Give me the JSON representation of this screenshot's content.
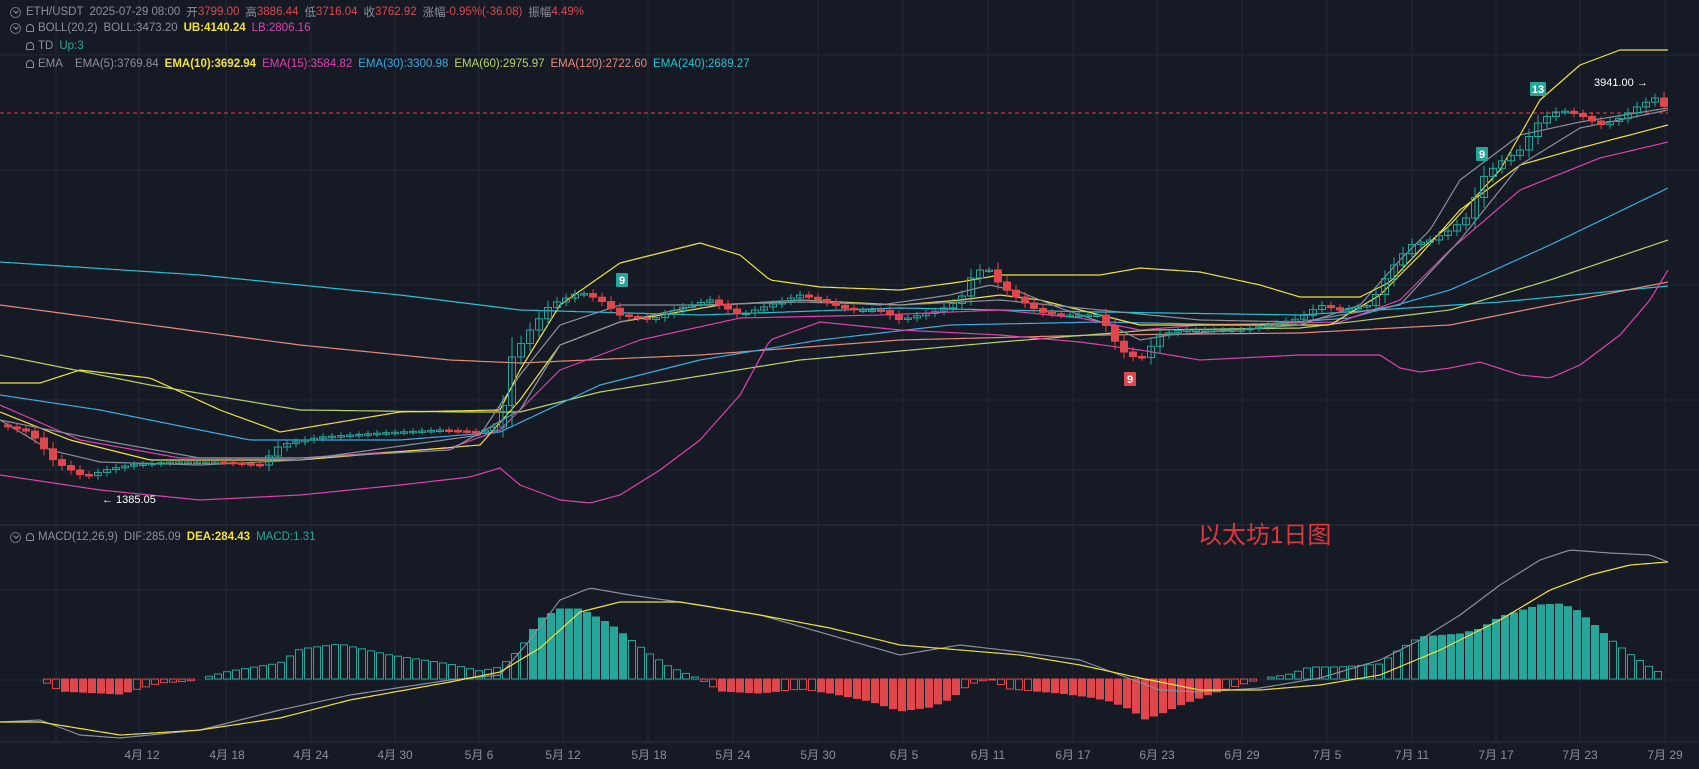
{
  "header": {
    "symbol": "ETH/USDT",
    "datetime": "2025-07-29 08:00",
    "open_label": "开",
    "open": "3799.00",
    "high_label": "高",
    "high": "3886.44",
    "low_label": "低",
    "low": "3716.04",
    "close_label": "收",
    "close": "3762.92",
    "change_label": "涨幅",
    "change": "-0.95%(-36.08)",
    "amp_label": "振幅",
    "amp": "4.49%"
  },
  "boll": {
    "name": "BOLL(20,2)",
    "mid": "BOLL:3473.20",
    "ub": "UB:4140.24",
    "lb": "LB:2806.16",
    "colors": {
      "mid": "#8a8f9c",
      "ub": "#f0e040",
      "lb": "#e040b0"
    }
  },
  "td": {
    "name": "TD",
    "value": "Up:3",
    "color": "#26a69a"
  },
  "ema": {
    "name": "EMA",
    "items": [
      {
        "label": "EMA(5):3769.84",
        "color": "#8a8f9c"
      },
      {
        "label": "EMA(10):3692.94",
        "color": "#f0e040"
      },
      {
        "label": "EMA(15):3584.82",
        "color": "#e040b0"
      },
      {
        "label": "EMA(30):3300.98",
        "color": "#3fa9e0"
      },
      {
        "label": "EMA(60):2975.97",
        "color": "#b5d36b"
      },
      {
        "label": "EMA(120):2722.60",
        "color": "#e88a7a"
      },
      {
        "label": "EMA(240):2689.27",
        "color": "#22c4d4"
      }
    ]
  },
  "macd": {
    "name": "MACD(12,26,9)",
    "dif": "DIF:285.09",
    "dea": "DEA:284.43",
    "macd": "MACD:1.31",
    "colors": {
      "dif": "#8a8f9c",
      "dea": "#f0e040",
      "macd": "#26a69a"
    }
  },
  "annotation": "以太坊1日图",
  "colors": {
    "up": "#26a69a",
    "down": "#e0474c",
    "bg": "#161a25",
    "grid": "#222838",
    "axis_text": "#8a8f9c"
  },
  "chart_data": {
    "type": "candlestick",
    "x_axis_labels": [
      "4月 12",
      "4月 18",
      "4月 24",
      "4月 30",
      "5月 6",
      "5月 12",
      "5月 18",
      "5月 24",
      "5月 30",
      "6月 5",
      "6月 11",
      "6月 17",
      "6月 23",
      "6月 29",
      "7月 5",
      "7月 11",
      "7月 17",
      "7月 23",
      "7月 29"
    ],
    "annotations": [
      {
        "text": "3941.00",
        "type": "high_marker"
      },
      {
        "text": "1385.05",
        "type": "low_marker"
      },
      {
        "text": "9",
        "type": "td_sell"
      },
      {
        "text": "13",
        "type": "td_sell"
      },
      {
        "text": "9",
        "type": "td_sell"
      },
      {
        "text": "9",
        "type": "td_buy"
      }
    ],
    "last_close": 3762.92
  }
}
